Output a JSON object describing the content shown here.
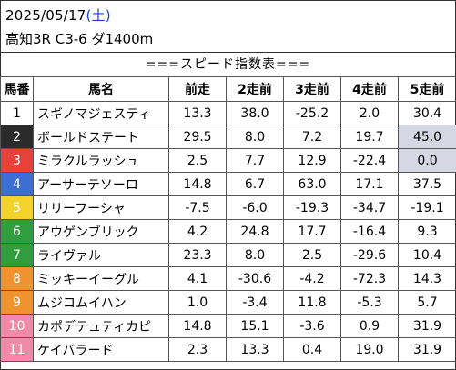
{
  "header": {
    "date": "2025/05/17",
    "dow_open": "(",
    "dow": "土",
    "dow_close": ")",
    "race": "高知3R C3-6 ダ1400m",
    "caption": "===スピード指数表==="
  },
  "columns": [
    "馬番",
    "馬名",
    "前走",
    "2走前",
    "3走前",
    "4走前",
    "5走前"
  ],
  "rows": [
    {
      "no": "1",
      "name": "スギノマジェスティ",
      "v": [
        "13.3",
        "38.0",
        "-25.2",
        "2.0",
        "30.4"
      ],
      "bg": "#ffffff",
      "fg": "#000000",
      "hl": [
        false,
        false,
        false,
        false,
        false
      ]
    },
    {
      "no": "2",
      "name": "ボールドステート",
      "v": [
        "29.5",
        "8.0",
        "7.2",
        "19.7",
        "45.0"
      ],
      "bg": "#2b2b2b",
      "fg": "#ffffff",
      "hl": [
        false,
        false,
        false,
        false,
        true
      ]
    },
    {
      "no": "3",
      "name": "ミラクルラッシュ",
      "v": [
        "2.5",
        "7.7",
        "12.9",
        "-22.4",
        "0.0"
      ],
      "bg": "#e8413c",
      "fg": "#ffffff",
      "hl": [
        false,
        false,
        false,
        false,
        true
      ]
    },
    {
      "no": "4",
      "name": "アーサーテソーロ",
      "v": [
        "14.8",
        "6.7",
        "63.0",
        "17.1",
        "37.5"
      ],
      "bg": "#3c6ed6",
      "fg": "#ffffff",
      "hl": [
        false,
        false,
        false,
        false,
        false
      ]
    },
    {
      "no": "5",
      "name": "リリーフーシャ",
      "v": [
        "-7.5",
        "-6.0",
        "-19.3",
        "-34.7",
        "-19.1"
      ],
      "bg": "#f3d22a",
      "fg": "#ffffff",
      "hl": [
        false,
        false,
        false,
        false,
        false
      ]
    },
    {
      "no": "6",
      "name": "アウゲンブリック",
      "v": [
        "4.2",
        "24.8",
        "17.7",
        "-16.4",
        "9.3"
      ],
      "bg": "#2e9e3e",
      "fg": "#ffffff",
      "hl": [
        false,
        false,
        false,
        false,
        false
      ]
    },
    {
      "no": "7",
      "name": "ライヴァル",
      "v": [
        "23.3",
        "8.0",
        "2.5",
        "-29.6",
        "10.4"
      ],
      "bg": "#2e9e3e",
      "fg": "#ffffff",
      "hl": [
        false,
        false,
        false,
        false,
        false
      ]
    },
    {
      "no": "8",
      "name": "ミッキーイーグル",
      "v": [
        "4.1",
        "-30.6",
        "-4.2",
        "-72.3",
        "14.3"
      ],
      "bg": "#f0922e",
      "fg": "#ffffff",
      "hl": [
        false,
        false,
        false,
        false,
        false
      ]
    },
    {
      "no": "9",
      "name": "ムジコムイハン",
      "v": [
        "1.0",
        "-3.4",
        "11.8",
        "-5.3",
        "5.7"
      ],
      "bg": "#f0922e",
      "fg": "#ffffff",
      "hl": [
        false,
        false,
        false,
        false,
        false
      ]
    },
    {
      "no": "10",
      "name": "カポデテュティカピ",
      "v": [
        "14.8",
        "15.1",
        "-3.6",
        "0.9",
        "31.9"
      ],
      "bg": "#f08aa8",
      "fg": "#ffffff",
      "hl": [
        false,
        false,
        false,
        false,
        false
      ]
    },
    {
      "no": "11",
      "name": "ケイバラード",
      "v": [
        "2.3",
        "13.3",
        "0.4",
        "19.0",
        "31.9"
      ],
      "bg": "#f08aa8",
      "fg": "#ffffff",
      "hl": [
        false,
        false,
        false,
        false,
        false
      ]
    }
  ]
}
